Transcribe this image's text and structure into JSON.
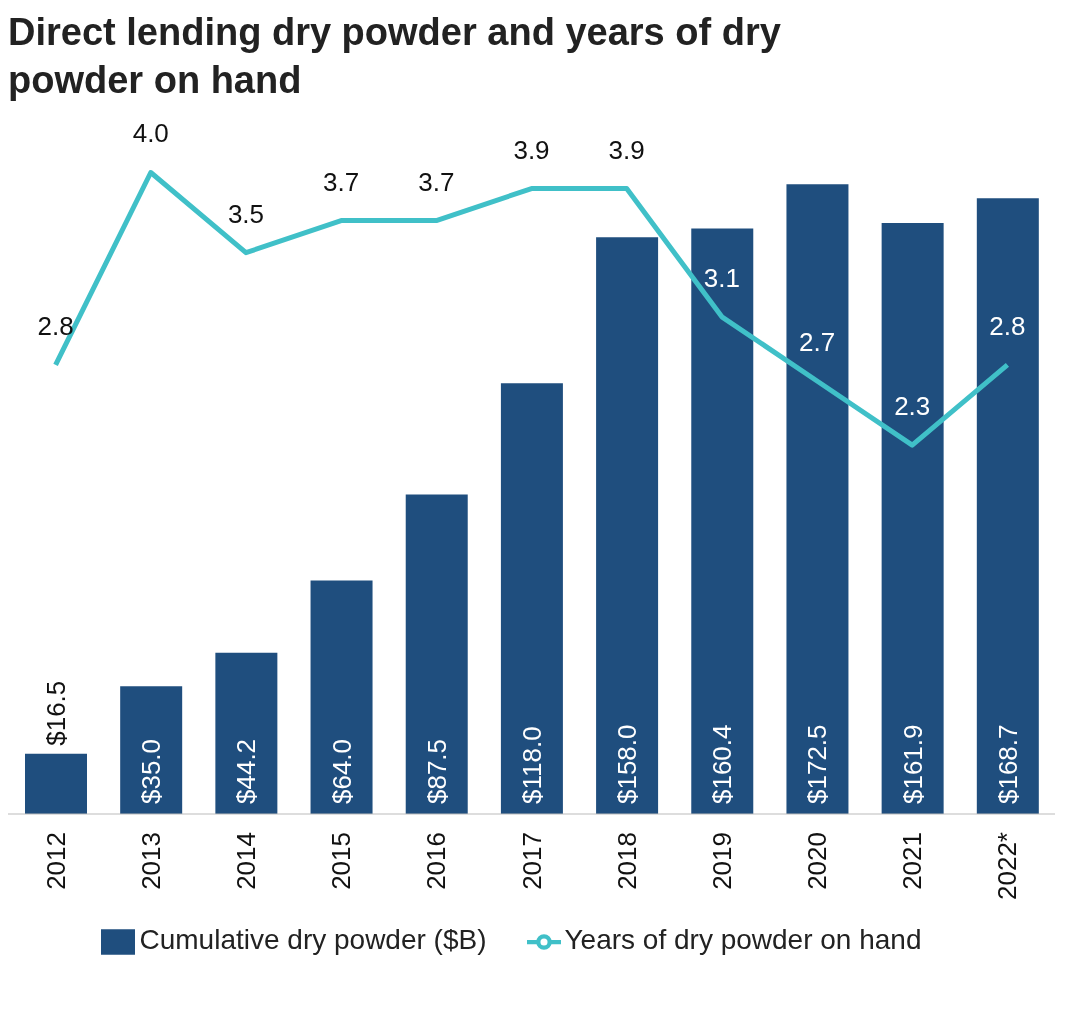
{
  "chart_data": {
    "type": "bar",
    "title": "Direct lending dry powder and years of dry powder on hand",
    "categories": [
      "2012",
      "2013",
      "2014",
      "2015",
      "2016",
      "2017",
      "2018",
      "2019",
      "2020",
      "2021",
      "2022*"
    ],
    "series": [
      {
        "name": "Cumulative dry powder ($B)",
        "color": "#1f4e7e",
        "values": [
          16.5,
          35.0,
          44.2,
          64.0,
          87.5,
          118.0,
          158.0,
          160.4,
          172.5,
          161.9,
          168.7
        ],
        "value_labels": [
          "$16.5",
          "$35.0",
          "$44.2",
          "$64.0",
          "$87.5",
          "$118.0",
          "$158.0",
          "$160.4",
          "$172.5",
          "$161.9",
          "$168.7"
        ]
      },
      {
        "name": "Years of dry powder on hand",
        "type": "line",
        "axis": "y2",
        "color": "#40c0c8",
        "values": [
          2.8,
          4.0,
          3.5,
          3.7,
          3.7,
          3.9,
          3.9,
          3.1,
          2.7,
          2.3,
          2.8
        ],
        "value_labels": [
          "2.8",
          "4.0",
          "3.5",
          "3.7",
          "3.7",
          "3.9",
          "3.9",
          "3.1",
          "2.7",
          "2.3",
          "2.8"
        ]
      }
    ],
    "legend": "bottom",
    "marker": "none",
    "line_style": "solid"
  }
}
